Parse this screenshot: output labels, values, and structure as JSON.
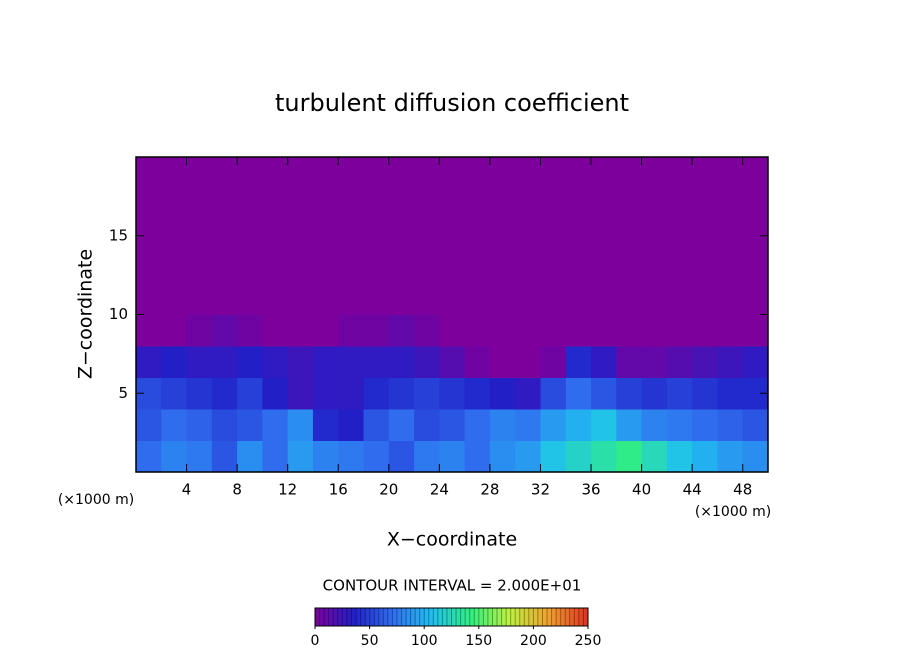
{
  "chart_data": {
    "type": "heatmap",
    "title": "turbulent diffusion coefficient",
    "x_label": "X−coordinate",
    "y_label": "Z−coordinate",
    "x_unit_left": "(×1000 m)",
    "x_unit_right": "(×1000 m)",
    "contour_note": "CONTOUR INTERVAL = 2.000E+01",
    "xlim": [
      0,
      50
    ],
    "ylim": [
      0,
      20
    ],
    "xticks": [
      4,
      8,
      12,
      16,
      20,
      24,
      28,
      32,
      36,
      40,
      44,
      48
    ],
    "yticks": [
      5,
      10,
      15
    ],
    "x": [
      1,
      3,
      5,
      7,
      9,
      11,
      13,
      15,
      17,
      19,
      21,
      23,
      25,
      27,
      29,
      31,
      33,
      35,
      37,
      39,
      41,
      43,
      45,
      47,
      49
    ],
    "y": [
      1,
      3,
      5,
      7,
      9,
      11,
      13,
      15,
      17,
      19
    ],
    "z": [
      [
        70,
        80,
        75,
        60,
        85,
        70,
        90,
        80,
        75,
        70,
        60,
        75,
        80,
        70,
        85,
        90,
        110,
        120,
        130,
        140,
        125,
        110,
        100,
        90,
        85
      ],
      [
        60,
        70,
        65,
        55,
        60,
        70,
        85,
        40,
        35,
        60,
        70,
        55,
        60,
        70,
        80,
        75,
        90,
        100,
        110,
        90,
        80,
        75,
        70,
        65,
        60
      ],
      [
        55,
        50,
        45,
        40,
        50,
        35,
        25,
        30,
        30,
        40,
        45,
        50,
        45,
        40,
        35,
        30,
        55,
        70,
        60,
        50,
        45,
        50,
        45,
        40,
        40
      ],
      [
        30,
        35,
        30,
        30,
        35,
        30,
        25,
        30,
        30,
        30,
        30,
        25,
        15,
        5,
        0,
        0,
        5,
        40,
        30,
        10,
        10,
        15,
        20,
        25,
        30
      ],
      [
        0,
        0,
        5,
        10,
        5,
        0,
        0,
        0,
        5,
        5,
        10,
        5,
        0,
        0,
        0,
        0,
        0,
        0,
        0,
        0,
        0,
        0,
        0,
        0,
        0
      ],
      [
        0,
        0,
        0,
        0,
        0,
        0,
        0,
        0,
        0,
        0,
        0,
        0,
        0,
        0,
        0,
        0,
        0,
        0,
        0,
        0,
        0,
        0,
        0,
        0,
        0
      ],
      [
        0,
        0,
        0,
        0,
        0,
        0,
        0,
        0,
        0,
        0,
        0,
        0,
        0,
        0,
        0,
        0,
        0,
        0,
        0,
        0,
        0,
        0,
        0,
        0,
        0
      ],
      [
        0,
        0,
        0,
        0,
        0,
        0,
        0,
        0,
        0,
        0,
        0,
        0,
        0,
        0,
        0,
        0,
        0,
        0,
        0,
        0,
        0,
        0,
        0,
        0,
        0
      ],
      [
        0,
        0,
        0,
        0,
        0,
        0,
        0,
        0,
        0,
        0,
        0,
        0,
        0,
        0,
        0,
        0,
        0,
        0,
        0,
        0,
        0,
        0,
        0,
        0,
        0
      ],
      [
        0,
        0,
        0,
        0,
        0,
        0,
        0,
        0,
        0,
        0,
        0,
        0,
        0,
        0,
        0,
        0,
        0,
        0,
        0,
        0,
        0,
        0,
        0,
        0,
        0
      ]
    ],
    "clim": [
      0,
      250
    ],
    "cticks": [
      0,
      50,
      100,
      150,
      200,
      250
    ],
    "colormap": [
      "#7d009d",
      "#2020c8",
      "#3070f0",
      "#20c0f0",
      "#30f080",
      "#c0f040",
      "#f0a030",
      "#e03020"
    ]
  }
}
